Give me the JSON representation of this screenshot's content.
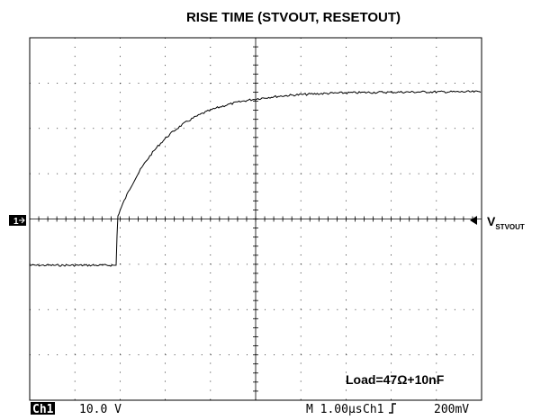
{
  "title": "RISE TIME (STVOUT, RESETOUT)",
  "channel_marker": "1",
  "signal_label": {
    "main": "V",
    "subscript": "STVOUT"
  },
  "annotation": "Load=47Ω+10nF",
  "status_bar": {
    "channel": "Ch1",
    "volts_per_div": "10.0 V",
    "timebase": "M 1.00µs",
    "trigger_source": "Ch1",
    "trigger_level": "200mV"
  }
}
